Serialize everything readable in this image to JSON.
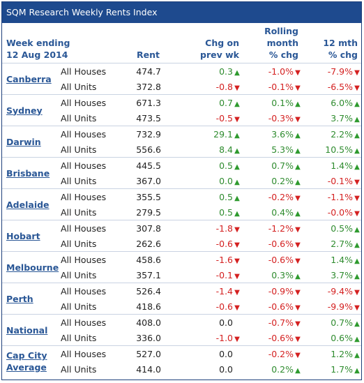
{
  "title": "SQM Research Weekly Rents Index",
  "header": {
    "week_ending_line1": "Week ending",
    "week_ending_line2": "12 Aug 2014",
    "rent": "Rent",
    "chg_line1": "Chg on",
    "chg_line2": "prev wk",
    "rolling_line1": "Rolling",
    "rolling_line2": "month",
    "rolling_line3": "% chg",
    "twelve_line1": "12 mth",
    "twelve_line2": "% chg"
  },
  "colors": {
    "title_bg": "#1e4a8e",
    "city_text": "#2a5796",
    "positive": "#2e8b2e",
    "negative": "#d42020"
  },
  "cities": [
    {
      "name": "Canberra",
      "rows": [
        {
          "type": "All Houses",
          "rent": "474.7",
          "chg": "0.3",
          "chg_dir": "up",
          "rolling": "-1.0%",
          "rolling_dir": "down",
          "twelve": "-7.9%",
          "twelve_dir": "down"
        },
        {
          "type": "All Units",
          "rent": "372.8",
          "chg": "-0.8",
          "chg_dir": "down",
          "rolling": "-0.1%",
          "rolling_dir": "down",
          "twelve": "-6.5%",
          "twelve_dir": "down"
        }
      ]
    },
    {
      "name": "Sydney",
      "rows": [
        {
          "type": "All Houses",
          "rent": "671.3",
          "chg": "0.7",
          "chg_dir": "up",
          "rolling": "0.1%",
          "rolling_dir": "up",
          "twelve": "6.0%",
          "twelve_dir": "up"
        },
        {
          "type": "All Units",
          "rent": "473.5",
          "chg": "-0.5",
          "chg_dir": "down",
          "rolling": "-0.3%",
          "rolling_dir": "down",
          "twelve": "3.7%",
          "twelve_dir": "up"
        }
      ]
    },
    {
      "name": "Darwin",
      "rows": [
        {
          "type": "All Houses",
          "rent": "732.9",
          "chg": "29.1",
          "chg_dir": "up",
          "rolling": "3.6%",
          "rolling_dir": "up",
          "twelve": "2.2%",
          "twelve_dir": "up"
        },
        {
          "type": "All Units",
          "rent": "556.6",
          "chg": "8.4",
          "chg_dir": "up",
          "rolling": "5.3%",
          "rolling_dir": "up",
          "twelve": "10.5%",
          "twelve_dir": "up"
        }
      ]
    },
    {
      "name": "Brisbane",
      "rows": [
        {
          "type": "All Houses",
          "rent": "445.5",
          "chg": "0.5",
          "chg_dir": "up",
          "rolling": "0.7%",
          "rolling_dir": "up",
          "twelve": "1.4%",
          "twelve_dir": "up"
        },
        {
          "type": "All Units",
          "rent": "367.0",
          "chg": "0.0",
          "chg_dir": "up",
          "rolling": "0.2%",
          "rolling_dir": "up",
          "twelve": "-0.1%",
          "twelve_dir": "down"
        }
      ]
    },
    {
      "name": "Adelaide",
      "rows": [
        {
          "type": "All Houses",
          "rent": "355.5",
          "chg": "0.5",
          "chg_dir": "up",
          "rolling": "-0.2%",
          "rolling_dir": "down",
          "twelve": "-1.1%",
          "twelve_dir": "down"
        },
        {
          "type": "All Units",
          "rent": "279.5",
          "chg": "0.5",
          "chg_dir": "up",
          "rolling": "0.4%",
          "rolling_dir": "up",
          "twelve": "-0.0%",
          "twelve_dir": "down"
        }
      ]
    },
    {
      "name": "Hobart",
      "rows": [
        {
          "type": "All Houses",
          "rent": "307.8",
          "chg": "-1.8",
          "chg_dir": "down",
          "rolling": "-1.2%",
          "rolling_dir": "down",
          "twelve": "0.5%",
          "twelve_dir": "up"
        },
        {
          "type": "All Units",
          "rent": "262.6",
          "chg": "-0.6",
          "chg_dir": "down",
          "rolling": "-0.6%",
          "rolling_dir": "down",
          "twelve": "2.7%",
          "twelve_dir": "up"
        }
      ]
    },
    {
      "name": "Melbourne",
      "rows": [
        {
          "type": "All Houses",
          "rent": "458.6",
          "chg": "-1.6",
          "chg_dir": "down",
          "rolling": "-0.6%",
          "rolling_dir": "down",
          "twelve": "1.4%",
          "twelve_dir": "up"
        },
        {
          "type": "All Units",
          "rent": "357.1",
          "chg": "-0.1",
          "chg_dir": "down",
          "rolling": "0.3%",
          "rolling_dir": "up",
          "twelve": "3.7%",
          "twelve_dir": "up"
        }
      ]
    },
    {
      "name": "Perth",
      "rows": [
        {
          "type": "All Houses",
          "rent": "526.4",
          "chg": "-1.4",
          "chg_dir": "down",
          "rolling": "-0.9%",
          "rolling_dir": "down",
          "twelve": "-9.4%",
          "twelve_dir": "down"
        },
        {
          "type": "All Units",
          "rent": "418.6",
          "chg": "-0.6",
          "chg_dir": "down",
          "rolling": "-0.6%",
          "rolling_dir": "down",
          "twelve": "-9.9%",
          "twelve_dir": "down"
        }
      ]
    },
    {
      "name": "National",
      "rows": [
        {
          "type": "All Houses",
          "rent": "408.0",
          "chg": "0.0",
          "chg_dir": "none",
          "rolling": "-0.7%",
          "rolling_dir": "down",
          "twelve": "0.7%",
          "twelve_dir": "up"
        },
        {
          "type": "All Units",
          "rent": "336.0",
          "chg": "-1.0",
          "chg_dir": "down",
          "rolling": "-0.6%",
          "rolling_dir": "down",
          "twelve": "0.6%",
          "twelve_dir": "up"
        }
      ]
    },
    {
      "name": "Cap City Average",
      "rows": [
        {
          "type": "All Houses",
          "rent": "527.0",
          "chg": "0.0",
          "chg_dir": "none",
          "rolling": "-0.2%",
          "rolling_dir": "down",
          "twelve": "1.2%",
          "twelve_dir": "up"
        },
        {
          "type": "All Units",
          "rent": "414.0",
          "chg": "0.0",
          "chg_dir": "none",
          "rolling": "0.2%",
          "rolling_dir": "up",
          "twelve": "1.7%",
          "twelve_dir": "up"
        }
      ]
    }
  ]
}
